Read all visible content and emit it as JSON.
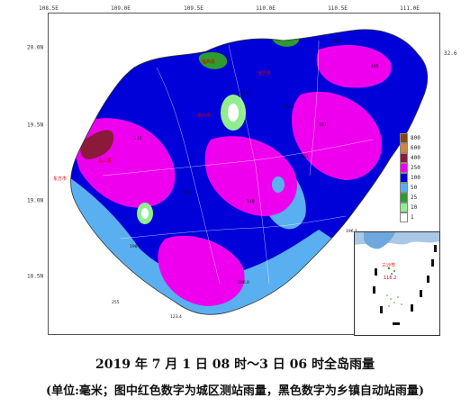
{
  "map": {
    "lon_ticks": [
      "108.5E",
      "109.0E",
      "109.5E",
      "110.0E",
      "110.5E",
      "111.0E"
    ],
    "lat_ticks": [
      "20.0N",
      "19.5N",
      "19.0N",
      "18.5N"
    ],
    "right_label": "32.6",
    "inset_label": "三沙市",
    "inset_value": "116.2",
    "city_labels": [
      "临高县",
      "澄迈县",
      "儋州市",
      "东方市",
      "昌江县"
    ],
    "station_values": [
      "319",
      "405",
      "135.6",
      "177.5",
      "167",
      "115",
      "196.1",
      "206.0",
      "255",
      "123.4",
      "161",
      "148",
      "198",
      "163"
    ]
  },
  "legend": {
    "levels": [
      {
        "label": "800",
        "color": "#8b4513"
      },
      {
        "label": "600",
        "color": "#cd853f"
      },
      {
        "label": "400",
        "color": "#8b1a3a"
      },
      {
        "label": "250",
        "color": "#ee00ee"
      },
      {
        "label": "100",
        "color": "#0000d8"
      },
      {
        "label": "50",
        "color": "#5aaff0"
      },
      {
        "label": "25",
        "color": "#2e9b2e"
      },
      {
        "label": "10",
        "color": "#90ee90"
      },
      {
        "label": "1",
        "color": "#ffffff"
      }
    ]
  },
  "caption": {
    "line1": "2019 年 7 月 1 日 08 时～3 日 06 时全岛雨量",
    "line2": "(单位:毫米；图中红色数字为城区测站雨量，黑色数字为乡镇自动站雨量)"
  }
}
